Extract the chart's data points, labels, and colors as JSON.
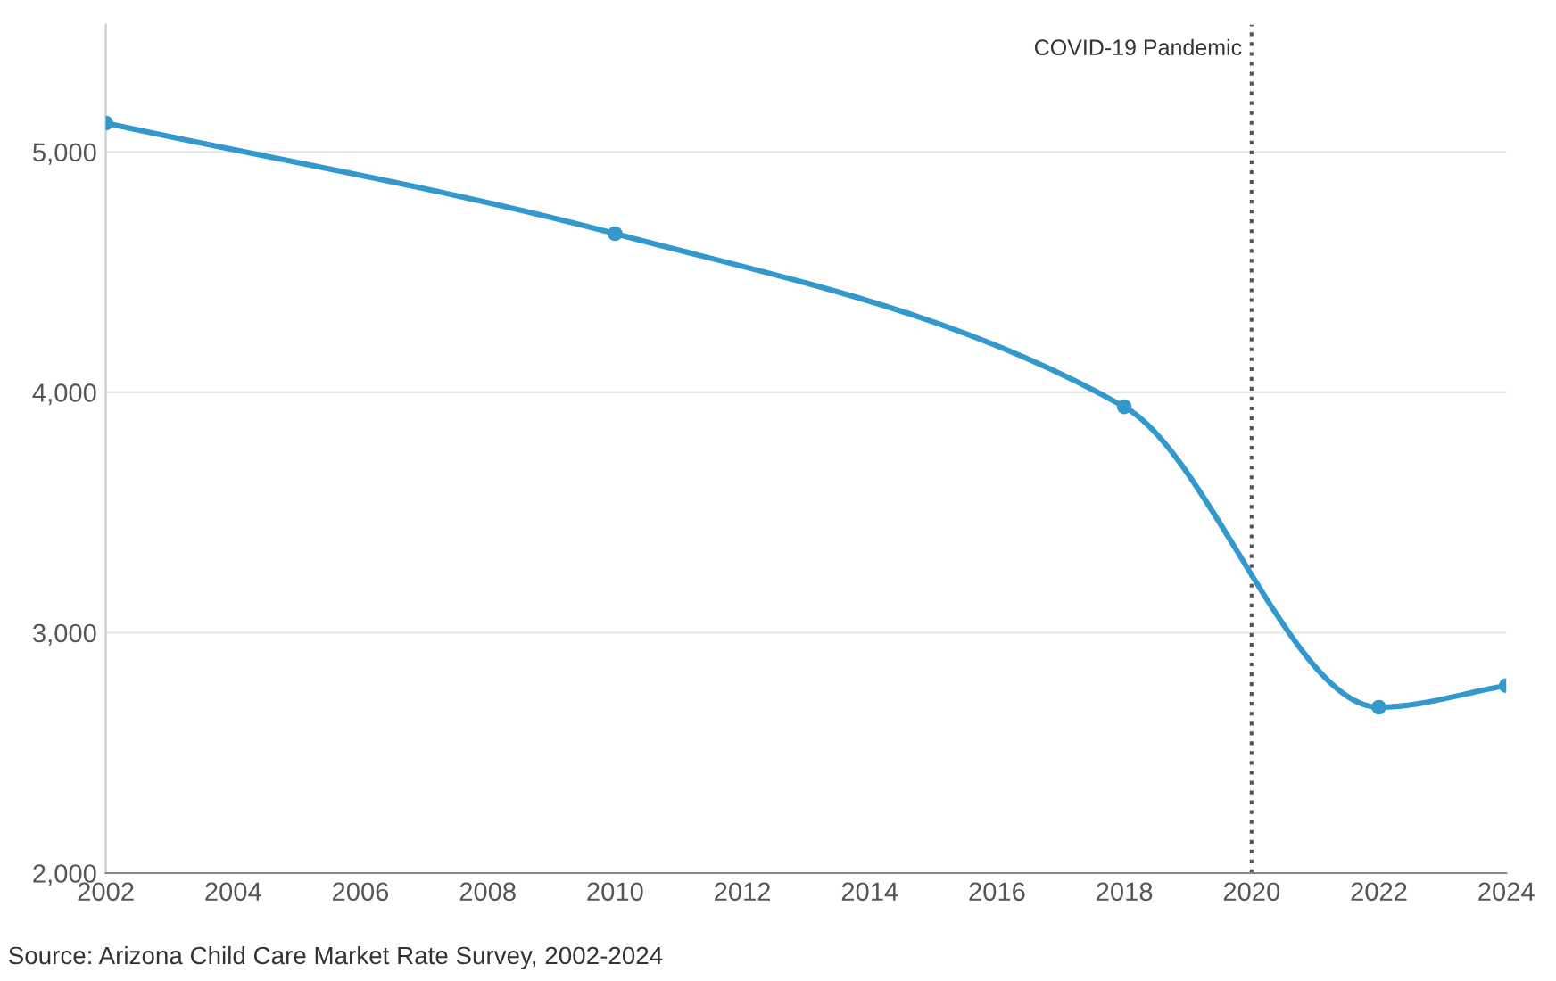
{
  "chart_data": {
    "type": "line",
    "x": [
      2002,
      2010,
      2018,
      2022,
      2024
    ],
    "series": [
      {
        "color": "#3399cc",
        "values": [
          5120,
          4660,
          3940,
          2690,
          2780
        ]
      }
    ],
    "xlim": [
      2002,
      2024
    ],
    "xticks": [
      2002,
      2004,
      2006,
      2008,
      2010,
      2012,
      2014,
      2016,
      2018,
      2020,
      2022,
      2024
    ],
    "ylim": [
      2000,
      5530
    ],
    "yticks": [
      {
        "value": 2000,
        "label": "2,000"
      },
      {
        "value": 3000,
        "label": "3,000"
      },
      {
        "value": 4000,
        "label": "4,000"
      },
      {
        "value": 5000,
        "label": "5,000"
      }
    ],
    "grid": "y",
    "marker": "circle",
    "line_style": "solid",
    "ref_lines": [
      {
        "axis": "x",
        "value": 2020,
        "label": "COVID-19 Pandemic",
        "color": "#555555",
        "line_style": "dotted"
      }
    ],
    "annotations": [
      "Source: Arizona Child Care Market Rate Survey, 2002-2024"
    ]
  }
}
